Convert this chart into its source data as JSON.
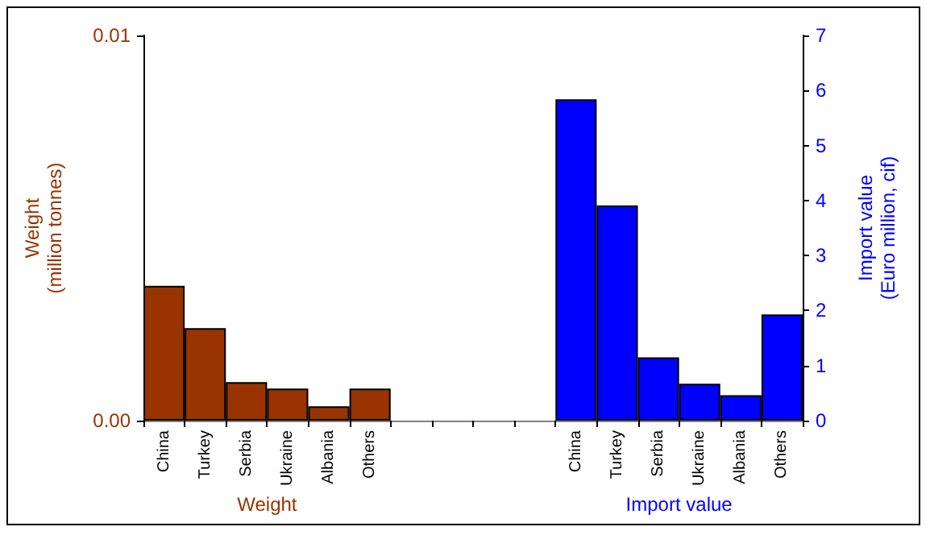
{
  "chart_data": {
    "type": "bar",
    "categories": [
      "China",
      "Turkey",
      "Serbia",
      "Ukraine",
      "Albania",
      "Others",
      null,
      null,
      null,
      null,
      "China",
      "Turkey",
      "Serbia",
      "Ukraine",
      "Albania",
      "Others"
    ],
    "series": [
      {
        "color": "#993300",
        "axis": "y",
        "values": [
          0.0035,
          0.0024,
          0.001,
          0.00083,
          0.00037,
          0.00083,
          null,
          null,
          null,
          null,
          null,
          null,
          null,
          null,
          null,
          null
        ]
      },
      {
        "color": "#0000ff",
        "axis": "y2",
        "values": [
          null,
          null,
          null,
          null,
          null,
          null,
          null,
          null,
          null,
          null,
          5.84,
          3.91,
          1.15,
          0.67,
          0.46,
          1.93
        ]
      }
    ],
    "ylabel": "Weight\n(million tonnes)",
    "y2label": "Import value\n(Euro million, cif)",
    "ylim": [
      0,
      0.01
    ],
    "yticks": [
      {
        "value": 0,
        "label": "0.00"
      },
      {
        "value": 0.01,
        "label": "0.01"
      }
    ],
    "y2lim": [
      0,
      7
    ],
    "y2ticks": [
      0,
      1,
      2,
      3,
      4,
      5,
      6,
      7
    ],
    "annotations": [
      "Weight",
      "Import value"
    ],
    "grid": false
  }
}
